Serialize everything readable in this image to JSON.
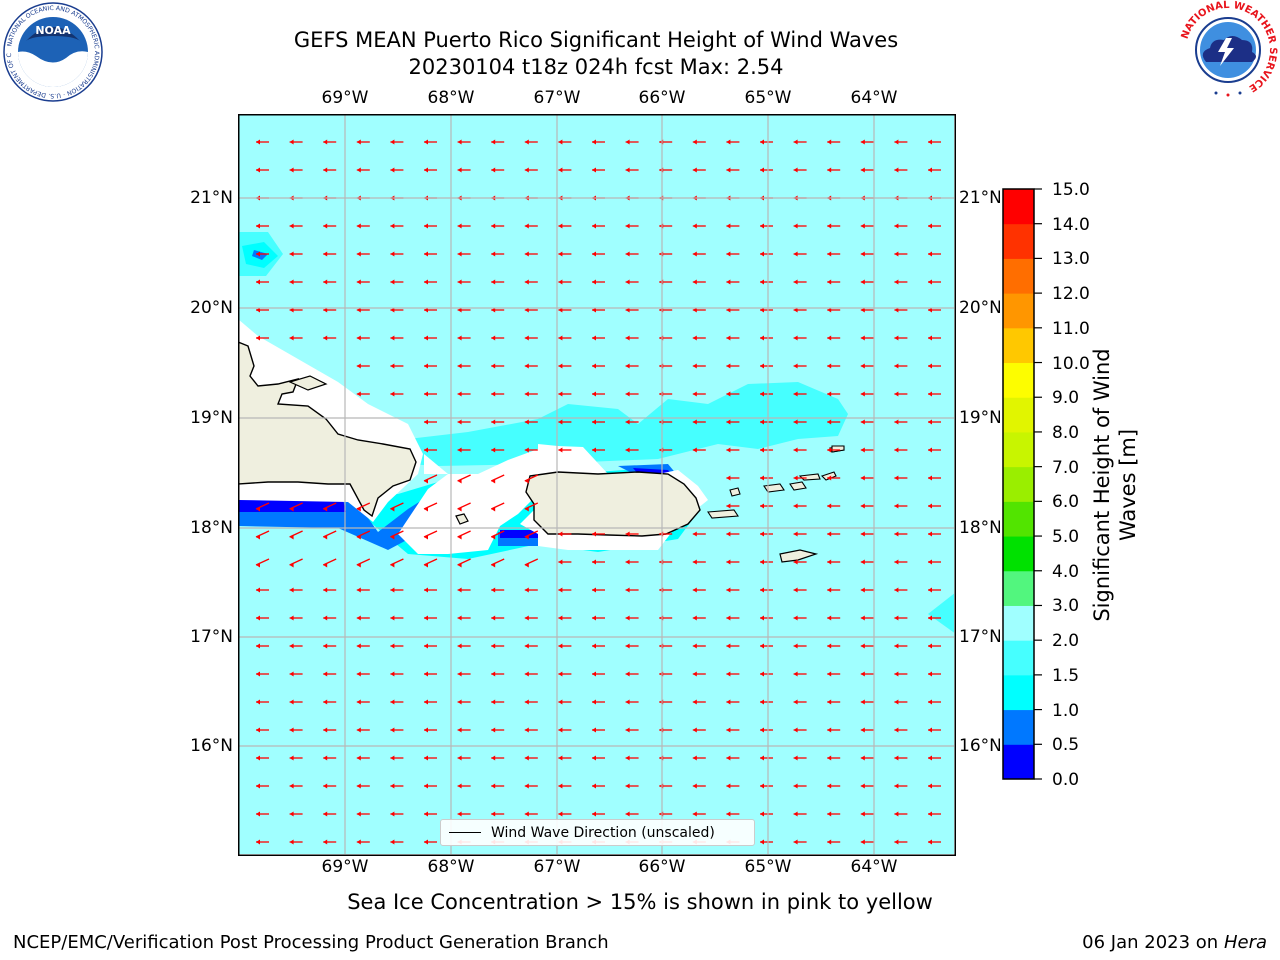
{
  "header": {
    "title_line1": "GEFS MEAN Puerto Rico Significant Height of Wind Waves",
    "title_line2": "20230104 t18z 024h fcst   Max: 2.54"
  },
  "logos": {
    "left": "NOAA",
    "left_ring": "NATIONAL OCEANIC AND ATMOSPHERIC ADMINISTRATION · U.S. DEPARTMENT OF COMMERCE",
    "right_ring": "NATIONAL WEATHER SERVICE"
  },
  "map": {
    "lon_ticks": [
      "69°W",
      "68°W",
      "67°W",
      "66°W",
      "65°W",
      "64°W"
    ],
    "lat_ticks": [
      "21°N",
      "20°N",
      "19°N",
      "18°N",
      "17°N",
      "16°N"
    ],
    "arrow_color": "#ff0000",
    "land_color": "#efefdf"
  },
  "colorbar": {
    "label_line1": "Significant Height of Wind",
    "label_line2": "Waves [m]",
    "ticks": [
      "15.0",
      "14.0",
      "13.0",
      "12.0",
      "11.0",
      "10.0",
      "9.0",
      "8.0",
      "7.0",
      "6.0",
      "5.0",
      "4.0",
      "3.0",
      "2.0",
      "1.5",
      "1.0",
      "0.5",
      "0.0"
    ],
    "colors": [
      "#0000ff",
      "#0078ff",
      "#00ffff",
      "#46ffff",
      "#a0ffff",
      "#52f67e",
      "#00e100",
      "#52e400",
      "#9aee00",
      "#c8f500",
      "#e1f500",
      "#fdfd00",
      "#ffc800",
      "#ff9600",
      "#ff6e00",
      "#ff3200",
      "#ff0000"
    ]
  },
  "legend": {
    "label": "Wind Wave Direction (unscaled)"
  },
  "footer": {
    "subtitle": "Sea Ice Concentration > 15% is shown in pink to yellow",
    "left": "NCEP/EMC/Verification Post Processing Product Generation Branch",
    "right_prefix": "06 Jan 2023 on ",
    "right_host": "Hera"
  }
}
